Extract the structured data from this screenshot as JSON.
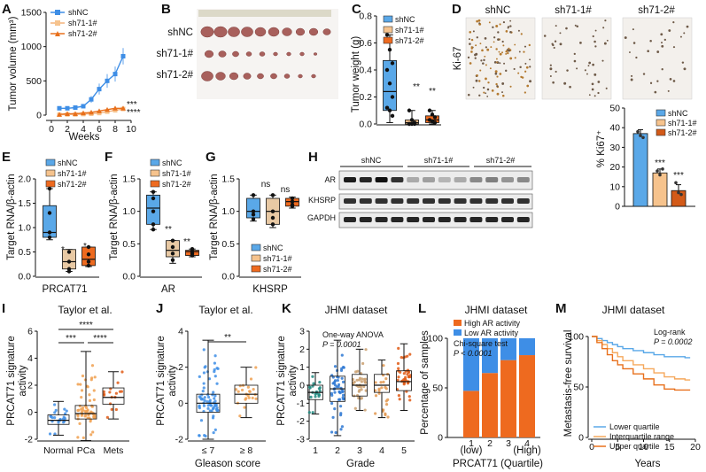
{
  "colors": {
    "shNC": "#3e8ee6",
    "sh71_1": "#f6c38d",
    "sh71_2": "#ee6a1f",
    "sh71_1_line": "#f3b27a",
    "sh71_2_line": "#e8701c",
    "box_blue": "#5aa8e8",
    "box_tan": "#e8c9a4",
    "km_tan": "#f5a85c",
    "km_orange": "#e8701c",
    "bar_dark_orange": "#d35a18",
    "stain_bg": "#f3f0ec",
    "blot_bg": "#ececec"
  },
  "legend": {
    "shNC": "shNC",
    "sh71_1": "sh71-1#",
    "sh71_2": "sh71-2#"
  },
  "panels": {
    "A": {
      "label": "A",
      "ylabel": "Tumor volume (mm³)",
      "xlabel": "Weeks",
      "sig1": "***",
      "sig2": "****",
      "chart_data": {
        "type": "line",
        "x": [
          1,
          2,
          3,
          4,
          5,
          6,
          7,
          8,
          9
        ],
        "xlim": [
          0,
          10
        ],
        "ylim": [
          0,
          1500
        ],
        "xticks": [
          "0",
          "2",
          "4",
          "6",
          "8",
          "10"
        ],
        "yticks": [
          "0",
          "500",
          "1000",
          "1500"
        ],
        "series": [
          {
            "name": "shNC",
            "values": [
              100,
              100,
              110,
              130,
              230,
              380,
              500,
              600,
              860
            ],
            "err": [
              10,
              10,
              15,
              30,
              50,
              80,
              100,
              110,
              120
            ]
          },
          {
            "name": "sh71-1#",
            "values": [
              5,
              10,
              10,
              15,
              20,
              30,
              50,
              70,
              90
            ],
            "err": [
              3,
              5,
              5,
              5,
              8,
              10,
              15,
              20,
              30
            ]
          },
          {
            "name": "sh71-2#",
            "values": [
              10,
              20,
              20,
              30,
              40,
              60,
              80,
              100,
              100
            ],
            "err": [
              5,
              5,
              8,
              10,
              10,
              15,
              20,
              20,
              30
            ]
          }
        ]
      }
    },
    "B": {
      "label": "B",
      "rows": [
        "shNC",
        "sh71-1#",
        "sh71-2#"
      ]
    },
    "C": {
      "label": "C",
      "ylabel": "Tumor weight (g)",
      "sig1": "**",
      "sig2": "**",
      "chart_data": {
        "type": "box",
        "ylim": [
          0,
          0.8
        ],
        "yticks": [
          "0.0",
          "0.2",
          "0.4",
          "0.6",
          "0.8"
        ],
        "groups": [
          {
            "name": "shNC",
            "min": 0.01,
            "q1": 0.1,
            "median": 0.24,
            "q3": 0.47,
            "max": 0.66,
            "points": [
              0.66,
              0.55,
              0.45,
              0.4,
              0.3,
              0.2,
              0.12,
              0.1,
              0.06
            ]
          },
          {
            "name": "sh71-1#",
            "min": 0.0,
            "q1": 0.0,
            "median": 0.01,
            "q3": 0.03,
            "max": 0.1,
            "points": [
              0.1,
              0.03,
              0.01,
              0.0,
              0.0,
              0.0,
              0.0
            ]
          },
          {
            "name": "sh71-2#",
            "min": 0.0,
            "q1": 0.01,
            "median": 0.03,
            "q3": 0.06,
            "max": 0.1,
            "points": [
              0.1,
              0.07,
              0.05,
              0.03,
              0.02,
              0.01
            ]
          }
        ]
      }
    },
    "D": {
      "label": "D",
      "titles": [
        "shNC",
        "sh71-1#",
        "sh71-2#"
      ],
      "side": "Ki-67",
      "ylabel": "% Ki67⁺",
      "sig1": "***",
      "sig2": "***",
      "chart_data": {
        "type": "bar",
        "categories": [
          "shNC",
          "sh71-1#",
          "sh71-2#"
        ],
        "values": [
          37,
          17,
          8
        ],
        "err": [
          2,
          2,
          3
        ],
        "ylim": [
          0,
          50
        ],
        "yticks": [
          "0",
          "10",
          "20",
          "30",
          "40",
          "50"
        ],
        "points": [
          [
            38,
            36,
            35
          ],
          [
            18,
            16,
            19
          ],
          [
            12,
            7,
            6
          ]
        ]
      }
    },
    "E": {
      "label": "E",
      "ylabel": "Target RNA/β-actin",
      "xlabel": "PRCAT71",
      "sig1": "*",
      "sig2": "*",
      "chart_data": {
        "type": "box",
        "ylim": [
          0,
          2.0
        ],
        "yticks": [
          "0.0",
          "0.5",
          "1.0",
          "1.5",
          "2.0"
        ],
        "groups": [
          {
            "name": "shNC",
            "min": 0.75,
            "q1": 0.8,
            "median": 0.9,
            "q3": 1.45,
            "max": 1.8,
            "points": [
              1.8,
              1.3,
              0.9,
              0.8
            ]
          },
          {
            "name": "sh71-1#",
            "min": 0.1,
            "q1": 0.15,
            "median": 0.3,
            "q3": 0.55,
            "max": 0.55,
            "points": [
              0.5,
              0.3,
              0.15,
              0.1
            ]
          },
          {
            "name": "sh71-2#",
            "min": 0.2,
            "q1": 0.22,
            "median": 0.35,
            "q3": 0.6,
            "max": 0.6,
            "points": [
              0.6,
              0.45,
              0.3,
              0.22
            ]
          }
        ]
      }
    },
    "F": {
      "label": "F",
      "ylabel": "Target RNA/β-actin",
      "xlabel": "AR",
      "sig1": "**",
      "sig2": "**",
      "chart_data": {
        "type": "box",
        "ylim": [
          0,
          1.5
        ],
        "yticks": [
          "0.0",
          "0.5",
          "1.0",
          "1.5"
        ],
        "groups": [
          {
            "name": "shNC",
            "min": 0.72,
            "q1": 0.8,
            "median": 1.05,
            "q3": 1.25,
            "max": 1.3,
            "points": [
              1.3,
              1.2,
              1.0,
              0.8,
              0.72
            ]
          },
          {
            "name": "sh71-1#",
            "min": 0.2,
            "q1": 0.3,
            "median": 0.4,
            "q3": 0.55,
            "max": 0.55,
            "points": [
              0.55,
              0.45,
              0.35,
              0.25
            ]
          },
          {
            "name": "sh71-2#",
            "min": 0.3,
            "q1": 0.32,
            "median": 0.38,
            "q3": 0.4,
            "max": 0.42,
            "points": [
              0.42,
              0.38,
              0.35,
              0.32
            ]
          }
        ]
      }
    },
    "G": {
      "label": "G",
      "ylabel": "Target RNA/β-actin",
      "xlabel": "KHSRP",
      "sig1": "ns",
      "sig2": "ns",
      "chart_data": {
        "type": "box",
        "ylim": [
          0,
          1.5
        ],
        "yticks": [
          "0.0",
          "0.5",
          "1.0",
          "1.5"
        ],
        "groups": [
          {
            "name": "shNC",
            "min": 0.85,
            "q1": 0.9,
            "median": 1.0,
            "q3": 1.2,
            "max": 1.25,
            "points": [
              1.25,
              1.0,
              0.95,
              0.88
            ]
          },
          {
            "name": "sh71-1#",
            "min": 0.75,
            "q1": 0.8,
            "median": 1.0,
            "q3": 1.2,
            "max": 1.25,
            "points": [
              1.25,
              1.0,
              0.9,
              0.8
            ]
          },
          {
            "name": "sh71-2#",
            "min": 1.05,
            "q1": 1.08,
            "median": 1.15,
            "q3": 1.2,
            "max": 1.22,
            "points": [
              1.2,
              1.15,
              1.1,
              1.08
            ]
          }
        ]
      }
    },
    "H": {
      "label": "H",
      "groups": [
        "shNC",
        "sh71-1#",
        "sh71-2#"
      ],
      "bands": [
        "AR",
        "KHSRP",
        "GAPDH"
      ]
    },
    "I": {
      "label": "I",
      "title": "Taylor et al.",
      "ylabel1": "PRCAT71 signature",
      "ylabel2": "activity",
      "sig_top": "****",
      "sig_mid1": "***",
      "sig_mid2": "****",
      "chart_data": {
        "type": "box",
        "ylim": [
          -2,
          6
        ],
        "yticks": [
          "-2",
          "0",
          "2",
          "4",
          "6"
        ],
        "groups": [
          {
            "name": "Normal",
            "min": -1.7,
            "q1": -0.9,
            "median": -0.6,
            "q3": -0.2,
            "max": 0.8
          },
          {
            "name": "PCa",
            "min": -2.1,
            "q1": -0.5,
            "median": -0.1,
            "q3": 0.5,
            "max": 4.5
          },
          {
            "name": "Mets",
            "min": -0.5,
            "q1": 0.6,
            "median": 1.1,
            "q3": 1.8,
            "max": 3.0
          }
        ]
      }
    },
    "J": {
      "label": "J",
      "title": "Taylor et al.",
      "ylabel1": "PRCAT71 signature",
      "ylabel2": "activity",
      "xlabel": "Gleason score",
      "sig": "**",
      "chart_data": {
        "type": "box",
        "ylim": [
          -2,
          4
        ],
        "yticks": [
          "-2",
          "0",
          "2",
          "4"
        ],
        "groups": [
          {
            "name": "≤ 7",
            "min": -2.0,
            "q1": -0.5,
            "median": 0.0,
            "q3": 0.5,
            "max": 3.5
          },
          {
            "name": "≥ 8",
            "min": -0.8,
            "q1": 0.0,
            "median": 0.5,
            "q3": 1.0,
            "max": 2.0
          }
        ]
      }
    },
    "K": {
      "label": "K",
      "title": "JHMI dataset",
      "ylabel1": "PRCAT71 signature",
      "ylabel2": "activity",
      "xlabel": "Grade",
      "anova": "One-way ANOVA",
      "pvalue": "P = 0.0001",
      "chart_data": {
        "type": "box",
        "ylim": [
          -3,
          3
        ],
        "yticks": [
          "-3",
          "-2",
          "-1",
          "0",
          "1",
          "2",
          "3"
        ],
        "groups": [
          {
            "name": "1",
            "min": -1.6,
            "q1": -0.8,
            "median": -0.4,
            "q3": 0.0,
            "max": 0.7
          },
          {
            "name": "2",
            "min": -2.8,
            "q1": -0.9,
            "median": -0.2,
            "q3": 0.5,
            "max": 2.5
          },
          {
            "name": "3",
            "min": -1.4,
            "q1": -0.6,
            "median": 0.0,
            "q3": 0.6,
            "max": 2.0
          },
          {
            "name": "4",
            "min": -1.8,
            "q1": -0.4,
            "median": 0.0,
            "q3": 0.6,
            "max": 1.4
          },
          {
            "name": "5",
            "min": -1.4,
            "q1": -0.3,
            "median": 0.2,
            "q3": 0.8,
            "max": 2.3
          }
        ]
      }
    },
    "L": {
      "label": "L",
      "title": "JHMI dataset",
      "ylabel": "Percentage of samples",
      "xlabel": "PRCAT71 (Quartile)",
      "legend_high": "High AR activity",
      "legend_low": "Low AR activity",
      "test": "Chi-square test",
      "pvalue": "P < 0.0001",
      "low": "(low)",
      "high": "(High)",
      "chart_data": {
        "type": "bar",
        "stacked": true,
        "categories": [
          "1",
          "2",
          "3",
          "4"
        ],
        "series": [
          {
            "name": "High AR activity",
            "values": [
              47,
              65,
              78,
              83
            ]
          },
          {
            "name": "Low AR activity",
            "values": [
              53,
              35,
              22,
              17
            ]
          }
        ],
        "ylim": [
          0,
          100
        ],
        "yticks": [
          "0",
          "50",
          "100"
        ]
      }
    },
    "M": {
      "label": "M",
      "title": "JHMI dataset",
      "ylabel": "Metastasis-free survival",
      "xlabel": "Years",
      "test": "Log-rank",
      "pvalue": "P = 0.0002",
      "chart_data": {
        "type": "line",
        "xlim": [
          0,
          20
        ],
        "ylim": [
          0,
          100
        ],
        "xticks": [
          "0",
          "5",
          "10",
          "15",
          "20"
        ],
        "yticks": [
          "0",
          "50",
          "100"
        ],
        "series": [
          {
            "name": "Lower quartile",
            "x": [
              0,
              1,
              2,
              3,
              4,
              5,
              6,
              8,
              10,
              12,
              14,
              16,
              18,
              19
            ],
            "values": [
              100,
              98,
              96,
              94,
              92,
              90,
              88,
              86,
              84,
              82,
              80,
              80,
              79,
              79
            ]
          },
          {
            "name": "Interquartile range",
            "x": [
              0,
              1,
              2,
              3,
              4,
              5,
              6,
              8,
              10,
              12,
              14,
              16,
              18,
              19
            ],
            "values": [
              100,
              96,
              92,
              88,
              84,
              80,
              76,
              72,
              68,
              64,
              60,
              58,
              57,
              57
            ]
          },
          {
            "name": "Upper quartile",
            "x": [
              0,
              1,
              2,
              3,
              4,
              5,
              6,
              8,
              10,
              12,
              14,
              16,
              18,
              19
            ],
            "values": [
              100,
              94,
              88,
              82,
              76,
              72,
              68,
              63,
              58,
              52,
              48,
              47,
              47,
              47
            ]
          }
        ]
      }
    }
  }
}
